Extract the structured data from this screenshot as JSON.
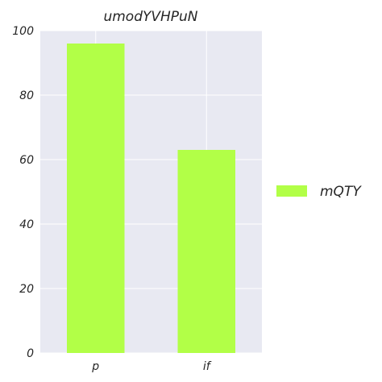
{
  "chart_data": {
    "type": "bar",
    "title": "umodYVHPuN",
    "xlabel": "",
    "ylabel": "",
    "categories": [
      "p",
      "if"
    ],
    "series": [
      {
        "name": "mQTY",
        "values": [
          96,
          63
        ],
        "color": "#b2ff47"
      }
    ],
    "ylim": [
      0,
      100
    ],
    "yticks": [
      "0",
      "20",
      "40",
      "60",
      "80",
      "100"
    ],
    "grid": true,
    "legend": "right",
    "background": "#e8e9f2",
    "grid_color": "#ffffff"
  }
}
